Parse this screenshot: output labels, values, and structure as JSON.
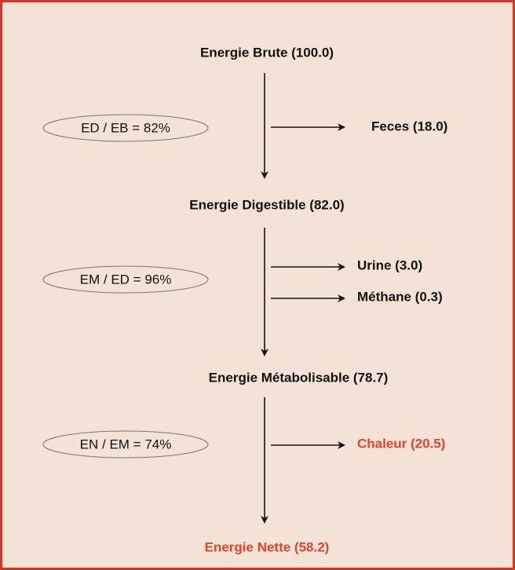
{
  "nodes": [
    {
      "label": "Energie Brute (100.0)"
    },
    {
      "label": "Energie Digestible (82.0)"
    },
    {
      "label": "Energie Métabolisable (78.7)"
    },
    {
      "label": "Energie Nette (58.2)"
    }
  ],
  "ratios": [
    "ED / EB = 82%",
    "EM / ED = 96%",
    "EN / EM = 74%"
  ],
  "losses": [
    "Feces (18.0)",
    "Urine (3.0)",
    "Méthane (0.3)",
    "Chaleur (20.5)"
  ]
}
